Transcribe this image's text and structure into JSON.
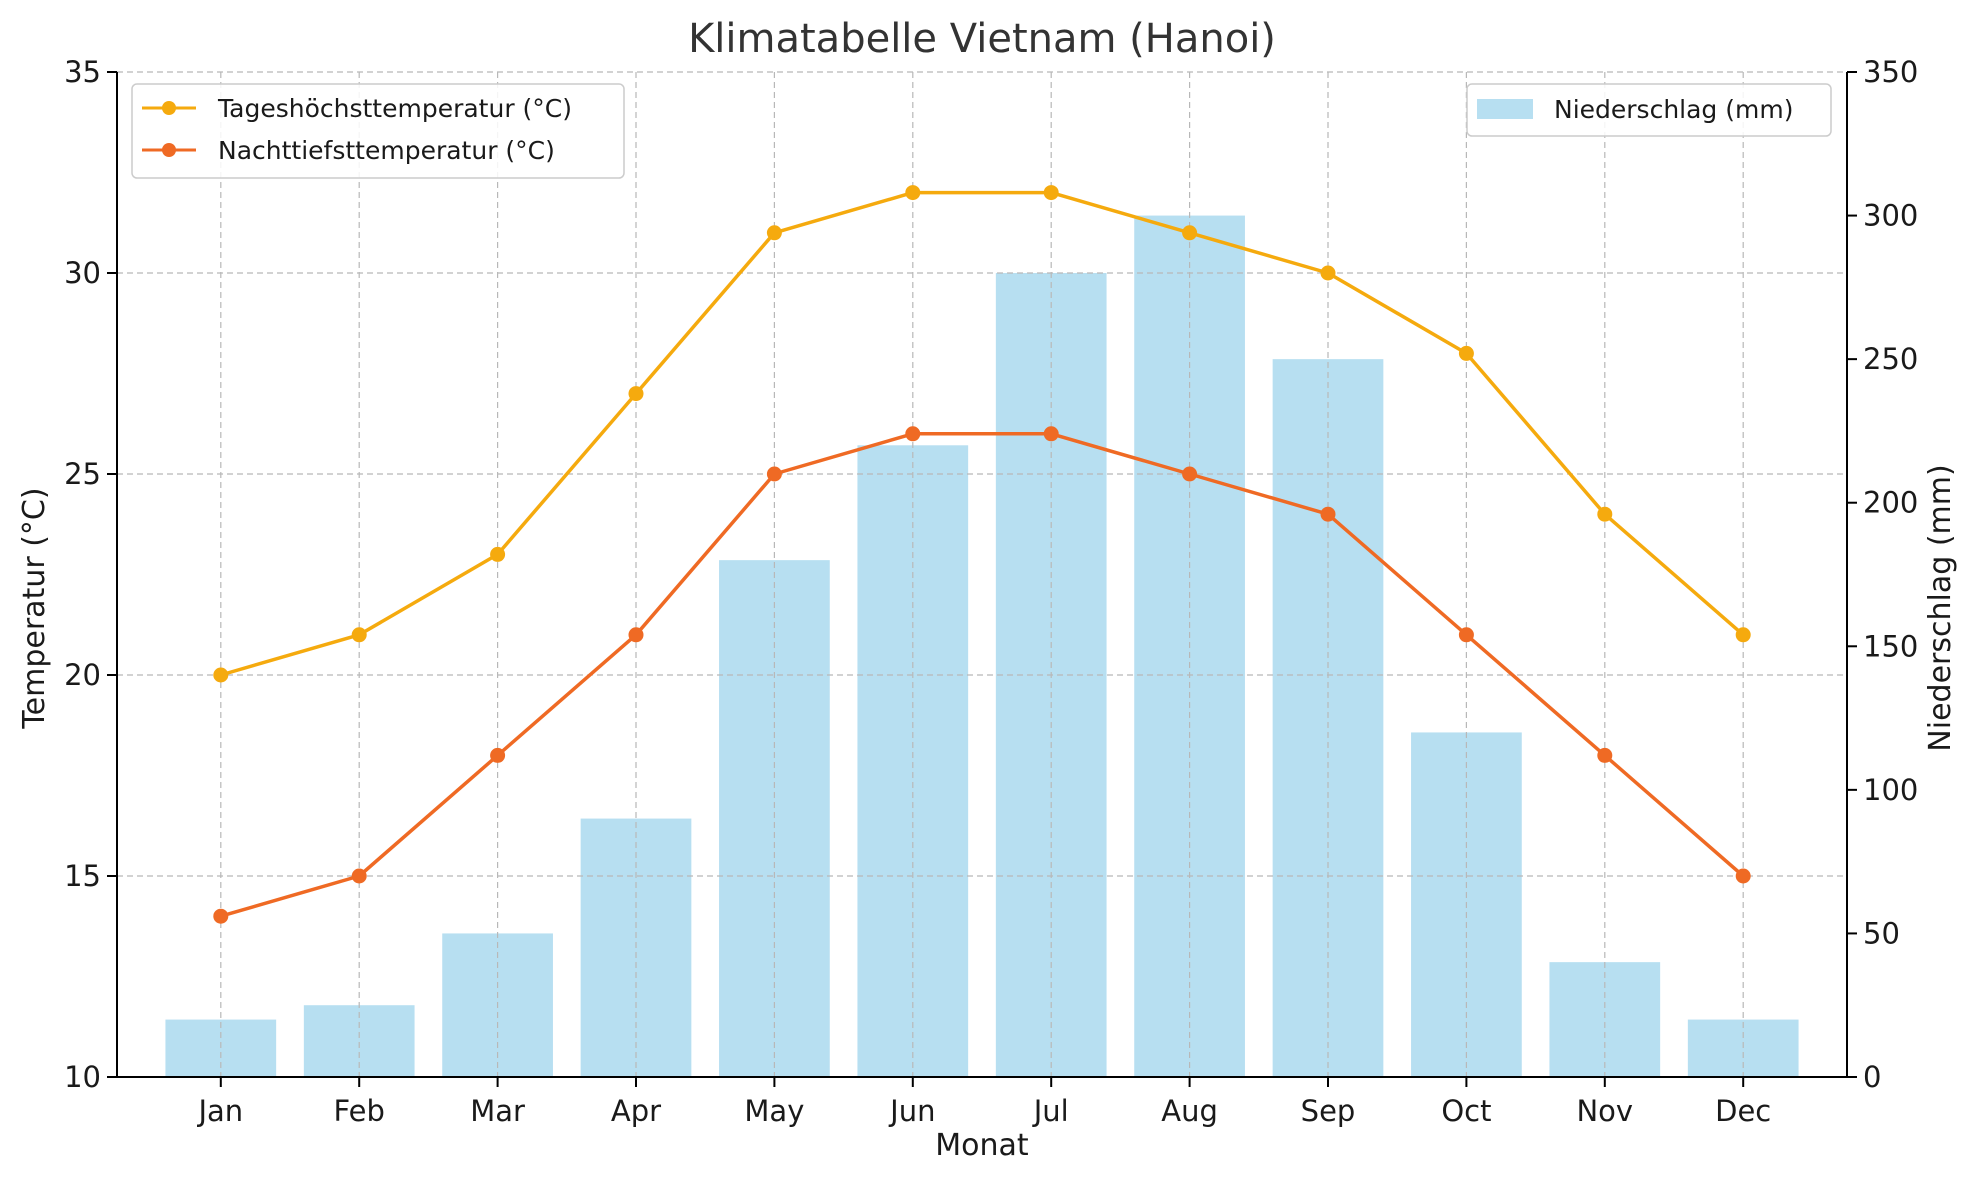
{
  "chart_data": {
    "type": "bar",
    "title": "Klimatabelle Vietnam (Hanoi)",
    "xlabel": "Monat",
    "ylabel": "Temperatur (°C)",
    "y2label": "Niederschlag (mm)",
    "categories": [
      "Jan",
      "Feb",
      "Mar",
      "Apr",
      "May",
      "Jun",
      "Jul",
      "Aug",
      "Sep",
      "Oct",
      "Nov",
      "Dec"
    ],
    "ylim": [
      10,
      35
    ],
    "y2lim": [
      0,
      350
    ],
    "yticks": [
      10,
      15,
      20,
      25,
      30,
      35
    ],
    "y2ticks": [
      0,
      50,
      100,
      150,
      200,
      250,
      300,
      350
    ],
    "grid": true,
    "series": [
      {
        "name": "Tageshöchsttemperatur (°C)",
        "type": "line",
        "axis": "left",
        "color": "#f5aa0e",
        "values": [
          20,
          21,
          23,
          27,
          31,
          32,
          32,
          31,
          30,
          28,
          24,
          21
        ]
      },
      {
        "name": "Nachttiefsttemperatur (°C)",
        "type": "line",
        "axis": "left",
        "color": "#ef6a24",
        "values": [
          14,
          15,
          18,
          21,
          25,
          26,
          26,
          25,
          24,
          21,
          18,
          15
        ]
      },
      {
        "name": "Niederschlag (mm)",
        "type": "bar",
        "axis": "right",
        "color": "#b7dff1",
        "values": [
          20,
          25,
          50,
          90,
          180,
          220,
          280,
          300,
          250,
          120,
          40,
          20
        ]
      }
    ],
    "legends": {
      "lines_position": "upper-left",
      "bars_position": "upper-right"
    }
  }
}
